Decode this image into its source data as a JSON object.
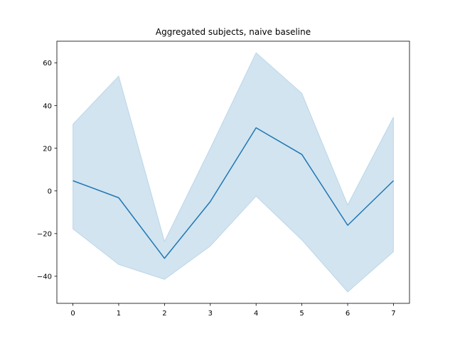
{
  "chart_data": {
    "type": "line",
    "title": "Aggregated subjects, naive baseline",
    "xlabel": "",
    "ylabel": "",
    "x": [
      0,
      1,
      2,
      3,
      4,
      5,
      6,
      7
    ],
    "series": [
      {
        "values": [
          4.8,
          -3.2,
          -31.6,
          -5.0,
          29.6,
          17.1,
          -16.1,
          4.8
        ],
        "band_upper": [
          31.3,
          53.9,
          -23.6,
          20.0,
          64.8,
          45.8,
          -6.5,
          34.7
        ],
        "band_lower": [
          -17.8,
          -34.5,
          -41.5,
          -25.9,
          -2.5,
          -23.0,
          -47.4,
          -28.5
        ]
      }
    ],
    "xlim": [
      -0.35,
      7.35
    ],
    "ylim": [
      -52.7,
      70.2
    ],
    "x_ticks": [
      0,
      1,
      2,
      3,
      4,
      5,
      6,
      7
    ],
    "y_ticks": [
      -40,
      -20,
      0,
      20,
      40,
      60
    ],
    "x_tick_labels": [
      "0",
      "1",
      "2",
      "3",
      "4",
      "5",
      "6",
      "7"
    ],
    "y_tick_labels": [
      "−40",
      "−20",
      "0",
      "20",
      "40",
      "60"
    ],
    "grid": false,
    "legend": "none",
    "colors": {
      "line": "#1f77b4",
      "band": "#1f77b4",
      "axes": "#000000"
    }
  }
}
